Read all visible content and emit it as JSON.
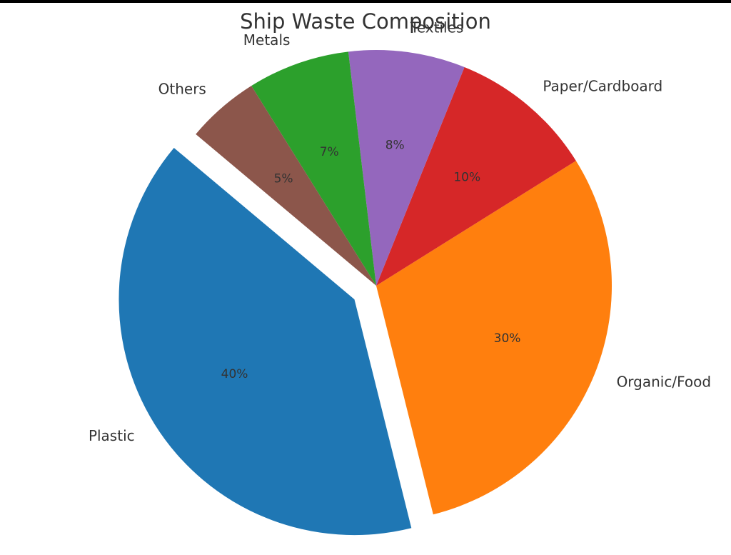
{
  "chart_data": {
    "type": "pie",
    "title": "Ship Waste Composition",
    "slices": [
      {
        "label": "Plastic",
        "value": 40,
        "pct_label": "40%",
        "color": "#1f77b4",
        "explode": true
      },
      {
        "label": "Organic/Food",
        "value": 30,
        "pct_label": "30%",
        "color": "#ff7f0e",
        "explode": false
      },
      {
        "label": "Paper/Cardboard",
        "value": 10,
        "pct_label": "10%",
        "color": "#d62728",
        "explode": false
      },
      {
        "label": "Textiles",
        "value": 8,
        "pct_label": "8%",
        "color": "#9467bd",
        "explode": false
      },
      {
        "label": "Metals",
        "value": 7,
        "pct_label": "7%",
        "color": "#2ca02c",
        "explode": false
      },
      {
        "label": "Others",
        "value": 5,
        "pct_label": "5%",
        "color": "#8c564b",
        "explode": false
      }
    ],
    "start_angle_deg": 140,
    "direction": "counterclockwise",
    "legend": "none"
  }
}
